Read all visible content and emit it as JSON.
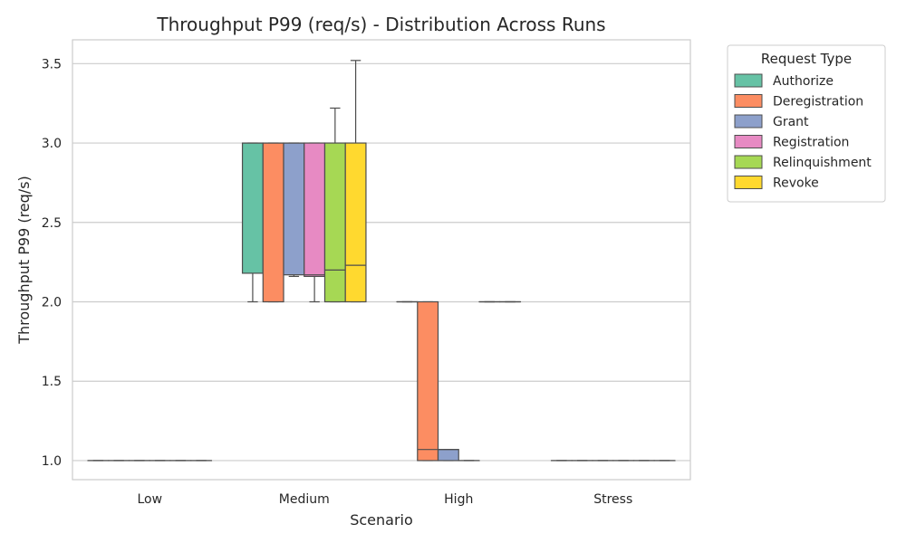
{
  "chart_data": {
    "type": "box",
    "title": "Throughput P99 (req/s) - Distribution Across Runs",
    "xlabel": "Scenario",
    "ylabel": "Throughput P99 (req/s)",
    "ylim": [
      0.88,
      3.65
    ],
    "yticks": [
      1.0,
      1.5,
      2.0,
      2.5,
      3.0,
      3.5
    ],
    "ytick_labels": [
      "1.0",
      "1.5",
      "2.0",
      "2.5",
      "3.0",
      "3.5"
    ],
    "grid": "horizontal",
    "legend_title": "Request Type",
    "legend_position": "outside-top-right",
    "categories": [
      "Low",
      "Medium",
      "High",
      "Stress"
    ],
    "series": [
      {
        "name": "Authorize",
        "color": "#66c2a5",
        "boxes": [
          {
            "whislo": 1.0,
            "q1": 1.0,
            "med": 1.0,
            "q3": 1.0,
            "whishi": 1.0
          },
          {
            "whislo": 2.0,
            "q1": 2.18,
            "med": 3.0,
            "q3": 3.0,
            "whishi": 3.0
          },
          {
            "whislo": 2.0,
            "q1": 2.0,
            "med": 2.0,
            "q3": 2.0,
            "whishi": 2.0
          },
          {
            "whislo": 1.0,
            "q1": 1.0,
            "med": 1.0,
            "q3": 1.0,
            "whishi": 1.0
          }
        ]
      },
      {
        "name": "Deregistration",
        "color": "#fc8d62",
        "boxes": [
          {
            "whislo": 1.0,
            "q1": 1.0,
            "med": 1.0,
            "q3": 1.0,
            "whishi": 1.0
          },
          {
            "whislo": 2.0,
            "q1": 2.0,
            "med": 3.0,
            "q3": 3.0,
            "whishi": 3.0
          },
          {
            "whislo": 1.0,
            "q1": 1.0,
            "med": 1.07,
            "q3": 2.0,
            "whishi": 2.0
          },
          {
            "whislo": 1.0,
            "q1": 1.0,
            "med": 1.0,
            "q3": 1.0,
            "whishi": 1.0
          }
        ]
      },
      {
        "name": "Grant",
        "color": "#8da0cb",
        "boxes": [
          {
            "whislo": 1.0,
            "q1": 1.0,
            "med": 1.0,
            "q3": 1.0,
            "whishi": 1.0
          },
          {
            "whislo": 2.16,
            "q1": 2.17,
            "med": 3.0,
            "q3": 3.0,
            "whishi": 3.0
          },
          {
            "whislo": 1.0,
            "q1": 1.0,
            "med": 1.07,
            "q3": 1.07,
            "whishi": 1.07
          },
          {
            "whislo": 1.0,
            "q1": 1.0,
            "med": 1.0,
            "q3": 1.0,
            "whishi": 1.0
          }
        ]
      },
      {
        "name": "Registration",
        "color": "#e78ac3",
        "boxes": [
          {
            "whislo": 1.0,
            "q1": 1.0,
            "med": 1.0,
            "q3": 1.0,
            "whishi": 1.0
          },
          {
            "whislo": 2.0,
            "q1": 2.16,
            "med": 2.17,
            "q3": 3.0,
            "whishi": 3.0
          },
          {
            "whislo": 1.0,
            "q1": 1.0,
            "med": 1.0,
            "q3": 1.0,
            "whishi": 1.0
          },
          {
            "whislo": 1.0,
            "q1": 1.0,
            "med": 1.0,
            "q3": 1.0,
            "whishi": 1.0
          }
        ]
      },
      {
        "name": "Relinquishment",
        "color": "#a6d854",
        "boxes": [
          {
            "whislo": 1.0,
            "q1": 1.0,
            "med": 1.0,
            "q3": 1.0,
            "whishi": 1.0
          },
          {
            "whislo": 2.0,
            "q1": 2.0,
            "med": 2.2,
            "q3": 3.0,
            "whishi": 3.22
          },
          {
            "whislo": 2.0,
            "q1": 2.0,
            "med": 2.0,
            "q3": 2.0,
            "whishi": 2.0
          },
          {
            "whislo": 1.0,
            "q1": 1.0,
            "med": 1.0,
            "q3": 1.0,
            "whishi": 1.0
          }
        ]
      },
      {
        "name": "Revoke",
        "color": "#ffd92f",
        "boxes": [
          {
            "whislo": 1.0,
            "q1": 1.0,
            "med": 1.0,
            "q3": 1.0,
            "whishi": 1.0
          },
          {
            "whislo": 2.0,
            "q1": 2.0,
            "med": 2.23,
            "q3": 3.0,
            "whishi": 3.52
          },
          {
            "whislo": 2.0,
            "q1": 2.0,
            "med": 2.0,
            "q3": 2.0,
            "whishi": 2.0
          },
          {
            "whislo": 1.0,
            "q1": 1.0,
            "med": 1.0,
            "q3": 1.0,
            "whishi": 1.0
          }
        ]
      }
    ]
  }
}
